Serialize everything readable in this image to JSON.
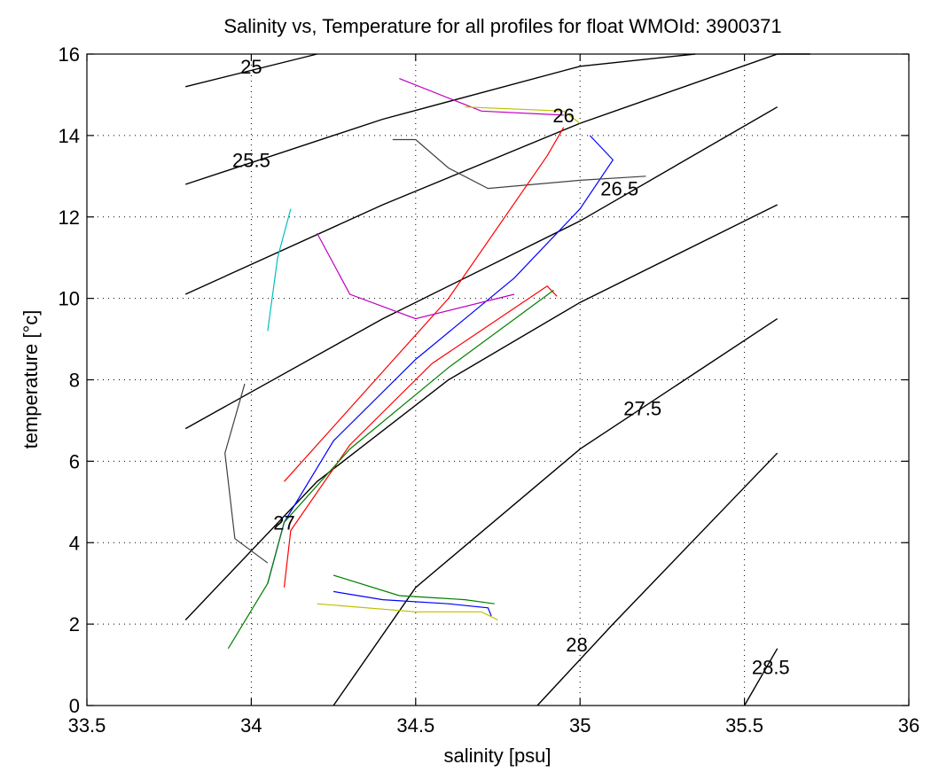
{
  "chart_data": {
    "type": "line",
    "title": "Salinity vs, Temperature for all profiles for float WMOId: 3900371",
    "xlabel": "salinity [psu]",
    "ylabel": "temperature [°c]",
    "xlim": [
      33.5,
      36
    ],
    "ylim": [
      0,
      16
    ],
    "x_ticks": [
      33.5,
      34,
      34.5,
      35,
      35.5,
      36
    ],
    "x_tick_labels": [
      "33.5",
      "34",
      "34.5",
      "35",
      "35.5",
      "36"
    ],
    "y_ticks": [
      0,
      2,
      4,
      6,
      8,
      10,
      12,
      14,
      16
    ],
    "y_tick_labels": [
      "0",
      "2",
      "4",
      "6",
      "8",
      "10",
      "12",
      "14",
      "16"
    ],
    "grid": true,
    "colors": [
      "#0000ff",
      "#008000",
      "#ff0000",
      "#00bfbf",
      "#bf00bf",
      "#bfbf00",
      "#404040"
    ],
    "density_contours": [
      {
        "label": "25",
        "points": [
          [
            33.8,
            15.2
          ],
          [
            34.2,
            16.4
          ]
        ],
        "label_pos": [
          34.0,
          15.7
        ]
      },
      {
        "label": "25.5",
        "points": [
          [
            33.8,
            12.8
          ],
          [
            34.4,
            14.4
          ],
          [
            35.0,
            15.7
          ],
          [
            35.35,
            16.4
          ]
        ],
        "label_pos": [
          34.0,
          13.4
        ]
      },
      {
        "label": "26",
        "points": [
          [
            33.8,
            10.1
          ],
          [
            34.4,
            12.3
          ],
          [
            35.0,
            14.3
          ],
          [
            35.6,
            16.1
          ],
          [
            35.7,
            16.4
          ]
        ],
        "label_pos": [
          34.95,
          14.5
        ]
      },
      {
        "label": "26.5",
        "points": [
          [
            33.8,
            6.8
          ],
          [
            34.4,
            9.5
          ],
          [
            35.0,
            11.9
          ],
          [
            35.6,
            14.7
          ]
        ],
        "label_pos": [
          35.12,
          12.7
        ]
      },
      {
        "label": "27",
        "points": [
          [
            33.8,
            2.1
          ],
          [
            34.2,
            5.5
          ],
          [
            34.6,
            8.0
          ],
          [
            35.0,
            9.9
          ],
          [
            35.6,
            12.3
          ]
        ],
        "label_pos": [
          34.1,
          4.5
        ]
      },
      {
        "label": "27.5",
        "points": [
          [
            34.25,
            0
          ],
          [
            34.5,
            2.9
          ],
          [
            35.0,
            6.3
          ],
          [
            35.6,
            9.5
          ]
        ],
        "label_pos": [
          35.19,
          7.3
        ]
      },
      {
        "label": "28",
        "points": [
          [
            34.87,
            0
          ],
          [
            35.1,
            2.0
          ],
          [
            35.6,
            6.2
          ]
        ],
        "label_pos": [
          34.99,
          1.5
        ]
      },
      {
        "label": "28.5",
        "points": [
          [
            35.5,
            0
          ],
          [
            35.6,
            1.4
          ]
        ],
        "label_pos": [
          35.58,
          0.95
        ]
      }
    ],
    "series": [
      {
        "color": "#0000ff",
        "points": [
          [
            34.05,
            3.0
          ],
          [
            34.1,
            4.5
          ],
          [
            34.25,
            6.5
          ],
          [
            34.5,
            8.5
          ],
          [
            34.8,
            10.5
          ],
          [
            35.0,
            12.2
          ],
          [
            35.1,
            13.4
          ],
          [
            35.03,
            14.0
          ]
        ]
      },
      {
        "color": "#ff0000",
        "points": [
          [
            34.1,
            2.9
          ],
          [
            34.12,
            4.3
          ],
          [
            34.3,
            6.4
          ],
          [
            34.55,
            8.4
          ],
          [
            34.9,
            10.3
          ],
          [
            34.93,
            10.05
          ]
        ]
      },
      {
        "color": "#008000",
        "points": [
          [
            33.93,
            1.4
          ],
          [
            34.05,
            3.0
          ],
          [
            34.1,
            4.5
          ],
          [
            34.3,
            6.3
          ],
          [
            34.6,
            8.3
          ],
          [
            34.92,
            10.2
          ]
        ]
      },
      {
        "color": "#bf00bf",
        "points": [
          [
            34.45,
            15.4
          ],
          [
            34.7,
            14.6
          ],
          [
            34.95,
            14.5
          ]
        ]
      },
      {
        "color": "#bfbf00",
        "points": [
          [
            34.65,
            14.7
          ],
          [
            34.95,
            14.6
          ],
          [
            35.0,
            14.3
          ]
        ]
      },
      {
        "color": "#404040",
        "points": [
          [
            34.43,
            13.9
          ],
          [
            34.5,
            13.9
          ],
          [
            34.6,
            13.2
          ],
          [
            34.72,
            12.7
          ],
          [
            35.0,
            12.9
          ],
          [
            35.2,
            13.0
          ]
        ]
      },
      {
        "color": "#ff0000",
        "points": [
          [
            34.1,
            5.5
          ],
          [
            34.6,
            10.0
          ],
          [
            34.9,
            13.5
          ],
          [
            34.95,
            14.2
          ]
        ]
      },
      {
        "color": "#00bfbf",
        "points": [
          [
            34.05,
            9.2
          ],
          [
            34.08,
            11.0
          ],
          [
            34.12,
            12.2
          ]
        ]
      },
      {
        "color": "#0000ff",
        "points": [
          [
            34.25,
            2.8
          ],
          [
            34.4,
            2.6
          ],
          [
            34.6,
            2.5
          ],
          [
            34.72,
            2.4
          ],
          [
            34.73,
            2.2
          ]
        ]
      },
      {
        "color": "#bfbf00",
        "points": [
          [
            34.2,
            2.5
          ],
          [
            34.5,
            2.3
          ],
          [
            34.7,
            2.3
          ],
          [
            34.75,
            2.1
          ]
        ]
      },
      {
        "color": "#008000",
        "points": [
          [
            34.25,
            3.2
          ],
          [
            34.45,
            2.7
          ],
          [
            34.65,
            2.6
          ],
          [
            34.74,
            2.5
          ]
        ]
      },
      {
        "color": "#bf00bf",
        "points": [
          [
            34.2,
            11.6
          ],
          [
            34.3,
            10.1
          ],
          [
            34.5,
            9.5
          ],
          [
            34.8,
            10.1
          ]
        ]
      },
      {
        "color": "#404040",
        "points": [
          [
            33.98,
            7.9
          ],
          [
            33.92,
            6.2
          ],
          [
            33.95,
            4.1
          ],
          [
            34.05,
            3.5
          ]
        ]
      }
    ]
  }
}
